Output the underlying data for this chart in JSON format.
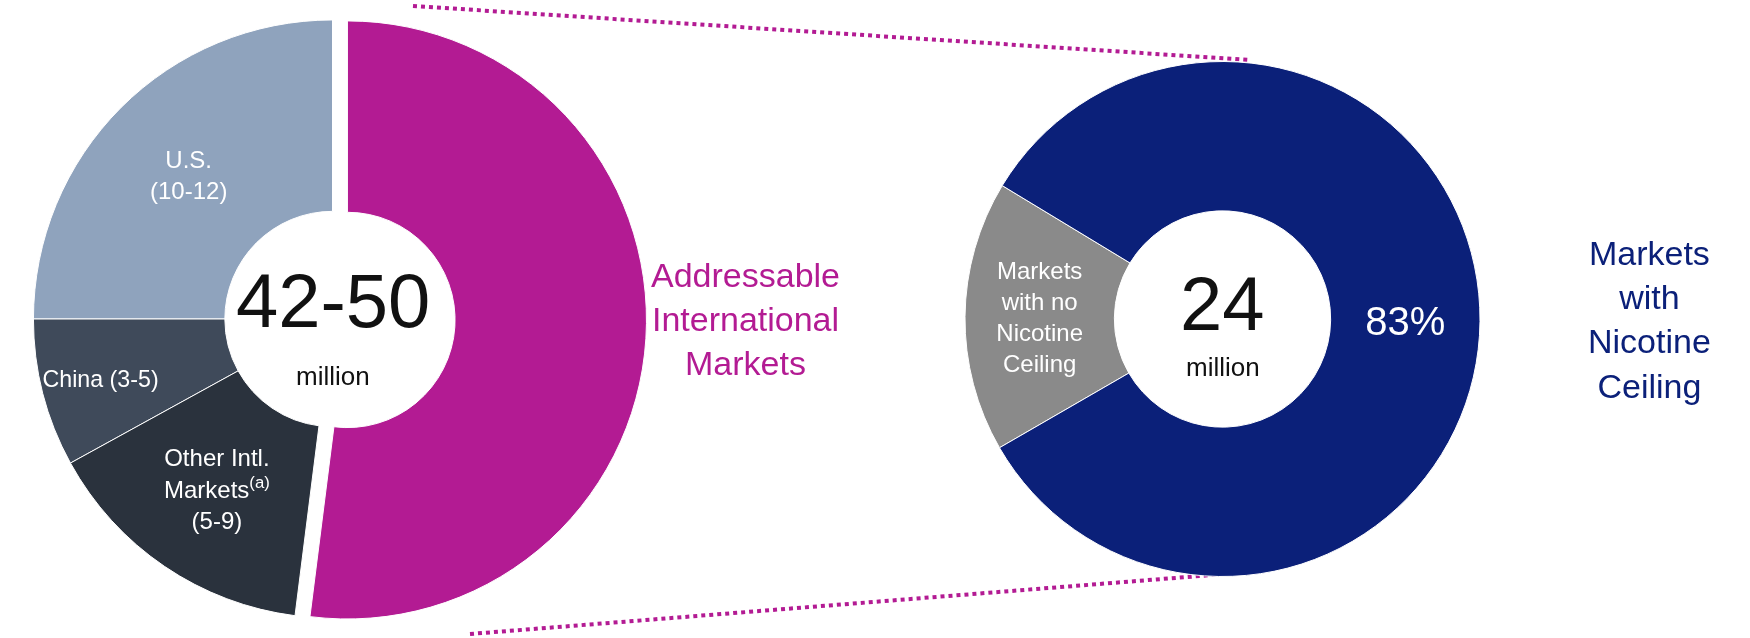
{
  "chart_data": [
    {
      "type": "donut",
      "categories": [
        "U.S. (10-12)",
        "China (3-5)",
        "Other Intl. Markets$^{(a)}$ (5-9)",
        "Addressable International Markets"
      ],
      "values": [
        25,
        8,
        15,
        52
      ],
      "colors": [
        "#8fa3bd",
        "#3f4a5a",
        "#2a323d",
        "#b31b93"
      ],
      "annotations": [
        "42-50",
        "million"
      ]
    },
    {
      "type": "donut",
      "categories": [
        "Markets with no Nicotine Ceiling",
        "Markets with Nicotine Ceiling"
      ],
      "values": [
        17,
        83
      ],
      "colors": [
        "#8a8a8a",
        "#0b2079"
      ],
      "value_labels": [
        null,
        "83%"
      ],
      "annotations": [
        "24",
        "million"
      ]
    }
  ]
}
